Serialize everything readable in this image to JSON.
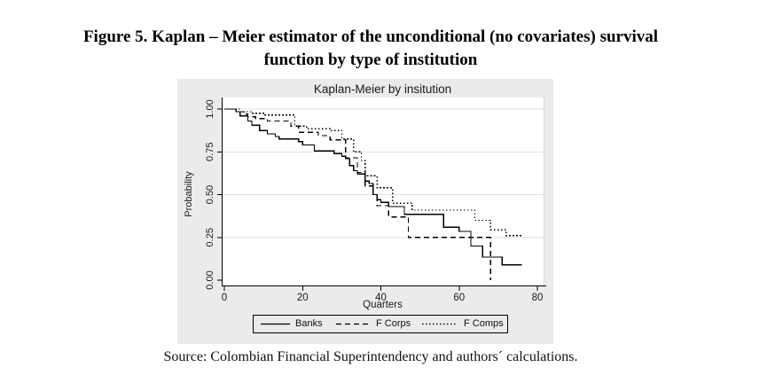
{
  "page": {
    "figure_title_line1": "Figure 5. Kaplan – Meier estimator of the unconditional (no covariates) survival",
    "figure_title_line2": "function by type of institution",
    "source": "Source: Colombian Financial Superintendency and authors´ calculations."
  },
  "chart_data": {
    "type": "line",
    "subtype": "kaplan-meier-step",
    "title": "Kaplan-Meier by insitution",
    "xlabel": "Quarters",
    "ylabel": "Probability",
    "xlim": [
      0,
      80
    ],
    "ylim": [
      0.0,
      1.0
    ],
    "xticks": [
      {
        "value": 0,
        "label": "0"
      },
      {
        "value": 20,
        "label": "20"
      },
      {
        "value": 40,
        "label": "40"
      },
      {
        "value": 60,
        "label": "60"
      },
      {
        "value": 80,
        "label": "80"
      }
    ],
    "yticks": [
      {
        "value": 0.0,
        "label": "0.00"
      },
      {
        "value": 0.25,
        "label": "0.25"
      },
      {
        "value": 0.5,
        "label": "0.50"
      },
      {
        "value": 0.75,
        "label": "0.75"
      },
      {
        "value": 1.0,
        "label": "1.00"
      }
    ],
    "grid": true,
    "legend_position": "bottom-center",
    "colors": {
      "graph_region": "#ebebeb",
      "plot_background": "#ffffff",
      "gridline": "#e0e0e0",
      "plot_right_border": "#d9d9d9",
      "axis": "#000000",
      "series_stroke": "#000000"
    },
    "series": [
      {
        "name": "Banks",
        "line_style": "solid",
        "points": [
          [
            0,
            1.0
          ],
          [
            3,
            0.985
          ],
          [
            4,
            0.96
          ],
          [
            6,
            0.93
          ],
          [
            7,
            0.905
          ],
          [
            9,
            0.875
          ],
          [
            11,
            0.855
          ],
          [
            13,
            0.84
          ],
          [
            14,
            0.825
          ],
          [
            19,
            0.81
          ],
          [
            20,
            0.79
          ],
          [
            23,
            0.755
          ],
          [
            28,
            0.74
          ],
          [
            30,
            0.725
          ],
          [
            31,
            0.71
          ],
          [
            32,
            0.67
          ],
          [
            33,
            0.64
          ],
          [
            34,
            0.62
          ],
          [
            36,
            0.58
          ],
          [
            37,
            0.565
          ],
          [
            38,
            0.5
          ],
          [
            39,
            0.47
          ],
          [
            40,
            0.455
          ],
          [
            42,
            0.43
          ],
          [
            46,
            0.385
          ],
          [
            56,
            0.31
          ],
          [
            60,
            0.285
          ],
          [
            63,
            0.2
          ],
          [
            66,
            0.135
          ],
          [
            71,
            0.09
          ],
          [
            76,
            0.09
          ]
        ]
      },
      {
        "name": "F Corps",
        "line_style": "dashed",
        "points": [
          [
            0,
            1.0
          ],
          [
            3,
            0.985
          ],
          [
            5,
            0.97
          ],
          [
            6,
            0.955
          ],
          [
            8,
            0.945
          ],
          [
            11,
            0.93
          ],
          [
            17,
            0.9
          ],
          [
            19,
            0.865
          ],
          [
            24,
            0.845
          ],
          [
            27,
            0.82
          ],
          [
            31,
            0.715
          ],
          [
            34,
            0.63
          ],
          [
            36,
            0.55
          ],
          [
            38,
            0.5
          ],
          [
            39,
            0.435
          ],
          [
            42,
            0.37
          ],
          [
            47,
            0.25
          ],
          [
            68,
            0.25
          ],
          [
            68,
            0.0
          ]
        ]
      },
      {
        "name": "F Comps",
        "line_style": "dotted",
        "points": [
          [
            0,
            1.0
          ],
          [
            4,
            0.985
          ],
          [
            7,
            0.975
          ],
          [
            10,
            0.965
          ],
          [
            18,
            0.9
          ],
          [
            21,
            0.885
          ],
          [
            27,
            0.875
          ],
          [
            30,
            0.825
          ],
          [
            33,
            0.75
          ],
          [
            35,
            0.7
          ],
          [
            36,
            0.61
          ],
          [
            39,
            0.54
          ],
          [
            43,
            0.45
          ],
          [
            48,
            0.41
          ],
          [
            64,
            0.35
          ],
          [
            68,
            0.295
          ],
          [
            72,
            0.26
          ],
          [
            76,
            0.26
          ]
        ]
      }
    ]
  }
}
